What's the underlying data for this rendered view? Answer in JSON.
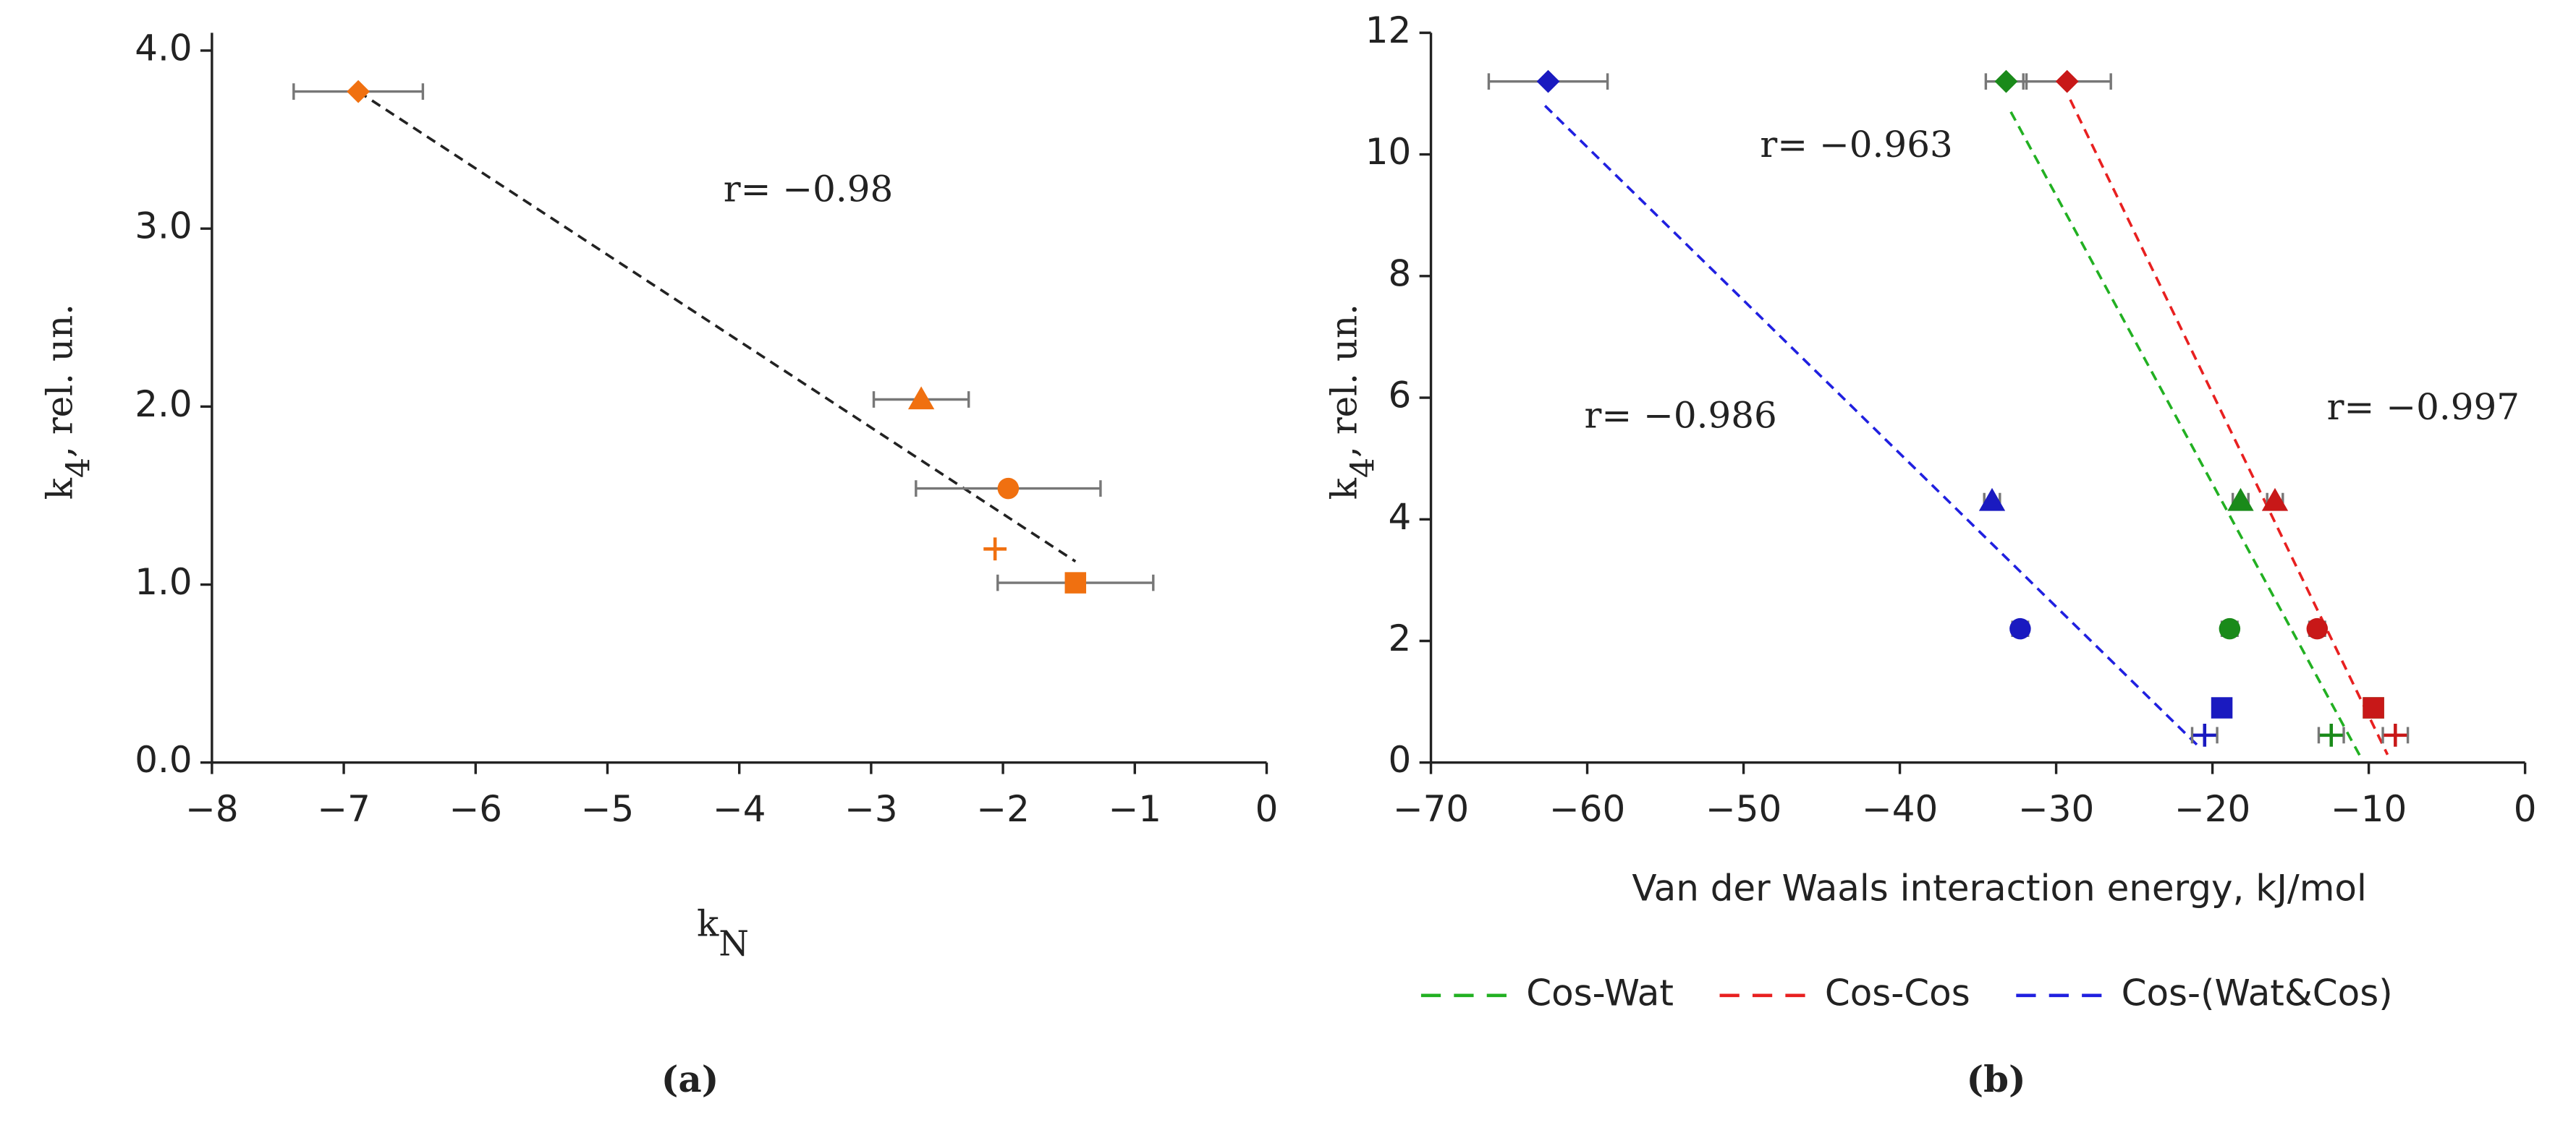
{
  "chart_data": [
    {
      "type": "scatter",
      "caption": "(a)",
      "xlabel": [
        "k",
        "N"
      ],
      "ylabel": [
        "k",
        "4",
        ", rel. un."
      ],
      "xlim": [
        -8,
        0
      ],
      "ylim": [
        0,
        4.1
      ],
      "xticks": [
        {
          "value": -8,
          "label": "−8"
        },
        {
          "value": -7,
          "label": "−7"
        },
        {
          "value": -6,
          "label": "−6"
        },
        {
          "value": -5,
          "label": "−5"
        },
        {
          "value": -4,
          "label": "−4"
        },
        {
          "value": -3,
          "label": "−3"
        },
        {
          "value": -2,
          "label": "−2"
        },
        {
          "value": -1,
          "label": "−1"
        },
        0
      ],
      "yticks": [
        {
          "value": 0,
          "label": "0.0"
        },
        {
          "value": 1,
          "label": "1.0"
        },
        {
          "value": 2,
          "label": "2.0"
        },
        {
          "value": 3,
          "label": "3.0"
        },
        {
          "value": 4,
          "label": "4.0"
        }
      ],
      "annotations": [
        {
          "text": "r= −0.98",
          "color": "#222222"
        }
      ],
      "series": [
        {
          "color": "#f07010",
          "line_color": "#222222",
          "markers": [
            "diamond",
            "triangle",
            "circle",
            "plus",
            "square"
          ],
          "x": [
            -6.89,
            -2.62,
            -1.96,
            -2.06,
            -1.45
          ],
          "y": [
            3.77,
            2.04,
            1.54,
            1.2,
            1.01
          ],
          "xerr": [
            0.49,
            0.36,
            0.7,
            null,
            0.59
          ],
          "fit_x": [
            -6.89,
            -1.45
          ],
          "fit_y": [
            3.77,
            1.13
          ]
        }
      ]
    },
    {
      "type": "scatter",
      "caption": "(b)",
      "xlabel": [
        "Van der Waals interaction energy, kJ/mol"
      ],
      "ylabel": [
        "k",
        "4",
        ", rel. un."
      ],
      "xlim": [
        -70,
        0
      ],
      "ylim": [
        0,
        12
      ],
      "xticks": [
        {
          "value": -70,
          "label": "−70"
        },
        {
          "value": -60,
          "label": "−60"
        },
        {
          "value": -50,
          "label": "−50"
        },
        {
          "value": -40,
          "label": "−40"
        },
        {
          "value": -30,
          "label": "−30"
        },
        {
          "value": -20,
          "label": "−20"
        },
        {
          "value": -10,
          "label": "−10"
        },
        0
      ],
      "yticks": [
        0,
        2,
        4,
        6,
        8,
        10,
        12
      ],
      "annotations": [
        {
          "text": "r= −0.963",
          "color": "#1aaa1a"
        },
        {
          "text": "r= −0.997",
          "color": "#e01a1a"
        },
        {
          "text": "r= −0.986",
          "color": "#1a1ae0"
        }
      ],
      "series": [
        {
          "name": "Cos-Wat",
          "color": "#1a8a1a",
          "line_color": "#22b022",
          "markers": [
            "diamond",
            "triangle",
            "circle",
            "square",
            "plus"
          ],
          "x": [
            -33.2,
            -18.2,
            -18.9,
            -9.7,
            -12.4
          ],
          "y": [
            11.2,
            4.3,
            2.2,
            0.9,
            0.45
          ],
          "xerr": [
            1.3,
            0.5,
            0.5,
            0.5,
            0.8
          ],
          "fit_x": [
            -32.9,
            -10.5
          ],
          "fit_y": [
            10.7,
            0.08
          ]
        },
        {
          "name": "Cos-Cos",
          "color": "#c81818",
          "line_color": "#e82020",
          "markers": [
            "diamond",
            "triangle",
            "circle",
            "square",
            "plus"
          ],
          "x": [
            -29.3,
            -16.0,
            -13.3,
            -9.7,
            -8.3
          ],
          "y": [
            11.2,
            4.3,
            2.2,
            0.9,
            0.45
          ],
          "xerr": [
            2.8,
            0.5,
            0.5,
            0.5,
            0.8
          ],
          "fit_x": [
            -29.1,
            -8.8
          ],
          "fit_y": [
            10.9,
            0.13
          ]
        },
        {
          "name": "Cos-(Wat&Cos)",
          "color": "#1a1ac0",
          "line_color": "#2020e0",
          "markers": [
            "diamond",
            "triangle",
            "circle",
            "square",
            "plus"
          ],
          "x": [
            -62.5,
            -34.1,
            -32.3,
            -19.4,
            -20.5
          ],
          "y": [
            11.2,
            4.3,
            2.2,
            0.9,
            0.45
          ],
          "xerr": [
            3.8,
            0.5,
            0.5,
            0.5,
            0.8
          ],
          "fit_x": [
            -62.7,
            -20.9
          ],
          "fit_y": [
            10.8,
            0.27
          ]
        }
      ]
    }
  ]
}
